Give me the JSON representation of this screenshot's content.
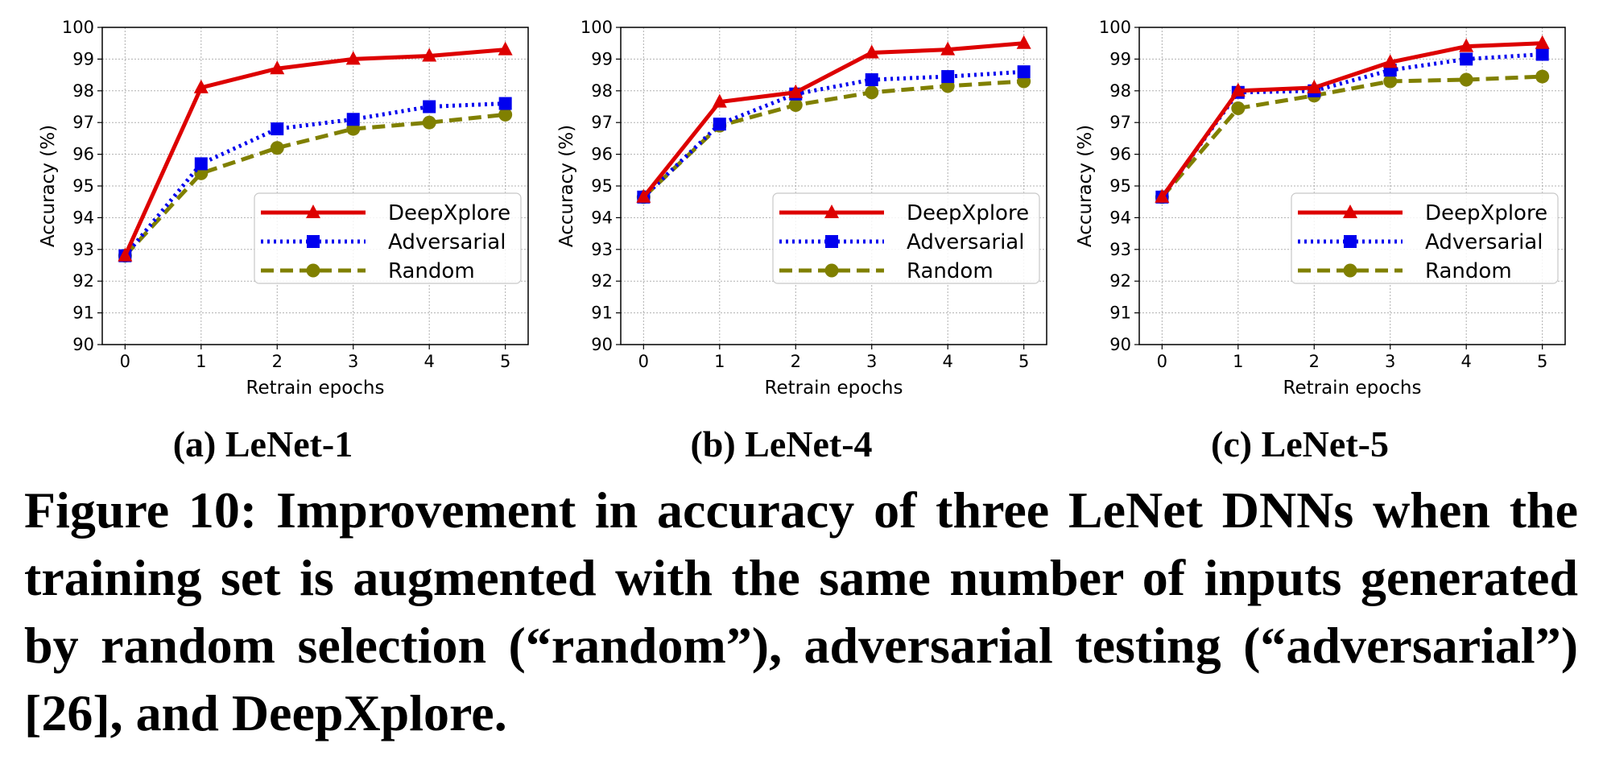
{
  "figure": {
    "caption": "Figure 10: Improvement in accuracy of three LeNet DNNs when the training set is augmented with the same number of inputs generated by random selection (“random”), adversarial testing (“adversarial”) [26], and DeepXplore."
  },
  "colors": {
    "deepxplore": "#dd0000",
    "adversarial": "#0000ee",
    "random": "#808000",
    "grid": "#b0b0b0"
  },
  "chart_data": [
    {
      "type": "line",
      "title": "(a) LeNet-1",
      "xlabel": "Retrain epochs",
      "ylabel": "Accuracy (%)",
      "x": [
        0,
        1,
        2,
        3,
        4,
        5
      ],
      "xlim": [
        -0.3,
        5.3
      ],
      "ylim": [
        90,
        100
      ],
      "xticks": [
        "0",
        "1",
        "2",
        "3",
        "4",
        "5"
      ],
      "yticks": [
        "90",
        "91",
        "92",
        "93",
        "94",
        "95",
        "96",
        "97",
        "98",
        "99",
        "100"
      ],
      "grid": true,
      "legend_position": "lower-right",
      "series": [
        {
          "name": "DeepXplore",
          "style": "solid",
          "marker": "triangle",
          "color_key": "deepxplore",
          "values": [
            92.8,
            98.1,
            98.7,
            99.0,
            99.1,
            99.3
          ]
        },
        {
          "name": "Adversarial",
          "style": "dotted",
          "marker": "square",
          "color_key": "adversarial",
          "values": [
            92.8,
            95.7,
            96.8,
            97.1,
            97.5,
            97.6
          ]
        },
        {
          "name": "Random",
          "style": "dashed",
          "marker": "circle",
          "color_key": "random",
          "values": [
            92.8,
            95.4,
            96.2,
            96.8,
            97.0,
            97.25
          ]
        }
      ]
    },
    {
      "type": "line",
      "title": "(b) LeNet-4",
      "xlabel": "Retrain epochs",
      "ylabel": "Accuracy (%)",
      "x": [
        0,
        1,
        2,
        3,
        4,
        5
      ],
      "xlim": [
        -0.3,
        5.3
      ],
      "ylim": [
        90,
        100
      ],
      "xticks": [
        "0",
        "1",
        "2",
        "3",
        "4",
        "5"
      ],
      "yticks": [
        "90",
        "91",
        "92",
        "93",
        "94",
        "95",
        "96",
        "97",
        "98",
        "99",
        "100"
      ],
      "grid": true,
      "legend_position": "lower-right",
      "series": [
        {
          "name": "DeepXplore",
          "style": "solid",
          "marker": "triangle",
          "color_key": "deepxplore",
          "values": [
            94.65,
            97.65,
            97.95,
            99.2,
            99.3,
            99.5
          ]
        },
        {
          "name": "Adversarial",
          "style": "dotted",
          "marker": "square",
          "color_key": "adversarial",
          "values": [
            94.65,
            96.95,
            97.9,
            98.35,
            98.45,
            98.6
          ]
        },
        {
          "name": "Random",
          "style": "dashed",
          "marker": "circle",
          "color_key": "random",
          "values": [
            94.65,
            96.9,
            97.55,
            97.95,
            98.15,
            98.3
          ]
        }
      ]
    },
    {
      "type": "line",
      "title": "(c) LeNet-5",
      "xlabel": "Retrain epochs",
      "ylabel": "Accuracy (%)",
      "x": [
        0,
        1,
        2,
        3,
        4,
        5
      ],
      "xlim": [
        -0.3,
        5.3
      ],
      "ylim": [
        90,
        100
      ],
      "xticks": [
        "0",
        "1",
        "2",
        "3",
        "4",
        "5"
      ],
      "yticks": [
        "90",
        "91",
        "92",
        "93",
        "94",
        "95",
        "96",
        "97",
        "98",
        "99",
        "100"
      ],
      "grid": true,
      "legend_position": "lower-right",
      "series": [
        {
          "name": "DeepXplore",
          "style": "solid",
          "marker": "triangle",
          "color_key": "deepxplore",
          "values": [
            94.65,
            98.0,
            98.1,
            98.9,
            99.4,
            99.5
          ]
        },
        {
          "name": "Adversarial",
          "style": "dotted",
          "marker": "square",
          "color_key": "adversarial",
          "values": [
            94.65,
            97.95,
            98.0,
            98.65,
            99.0,
            99.15
          ]
        },
        {
          "name": "Random",
          "style": "dashed",
          "marker": "circle",
          "color_key": "random",
          "values": [
            94.65,
            97.45,
            97.85,
            98.3,
            98.35,
            98.45
          ]
        }
      ]
    }
  ]
}
